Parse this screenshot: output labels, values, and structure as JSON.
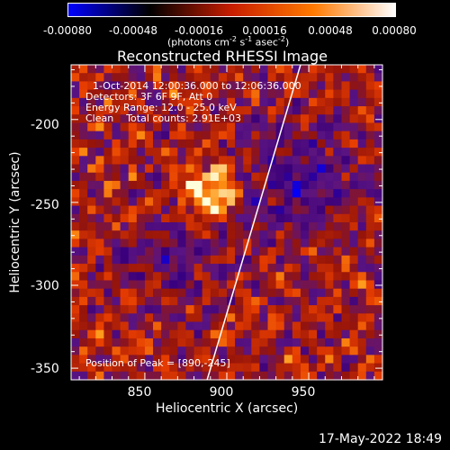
{
  "colorbar": {
    "ticks": [
      "-0.00080",
      "-0.00048",
      "-0.00016",
      "0.00016",
      "0.00048",
      "0.00080"
    ],
    "label_main": "(photons cm",
    "label_exp1": "-2",
    "label_mid1": " s",
    "label_exp2": "-1",
    "label_mid2": " asec",
    "label_exp3": "-2",
    "label_end": ")",
    "colors": [
      "#0000ff",
      "#000000",
      "#c81e00",
      "#ff7a00",
      "#ffffff"
    ]
  },
  "chart_data": {
    "type": "heatmap",
    "title": "Reconstructed RHESSI Image",
    "xlabel": "Heliocentric X (arcsec)",
    "ylabel": "Heliocentric Y (arcsec)",
    "xlim": [
      805,
      995
    ],
    "ylim": [
      -357,
      -167
    ],
    "xticks": [
      "850",
      "900",
      "950"
    ],
    "yticks": [
      "-200",
      "-250",
      "-300",
      "-350"
    ],
    "xtick_values": [
      850,
      900,
      950
    ],
    "ytick_values": [
      -200,
      -250,
      -300,
      -350
    ],
    "colorbar_range": [
      -0.0008,
      0.0008
    ],
    "peak": [
      890,
      -245
    ],
    "limb_line": [
      [
        888,
        -357
      ],
      [
        945,
        -167
      ]
    ],
    "annotations": {
      "time": "1-Oct-2014 12:00:36.000 to 12:06:36.000",
      "detectors": "Detectors: 3F 6F 9F, Att 0",
      "energy": "Energy Range: 12.0 - 25.0 keV",
      "clean": "Clean    Total counts: 2.91E+03",
      "peak": "Position of Peak = [890,-245]"
    }
  },
  "timestamp": "17-May-2022 18:49"
}
